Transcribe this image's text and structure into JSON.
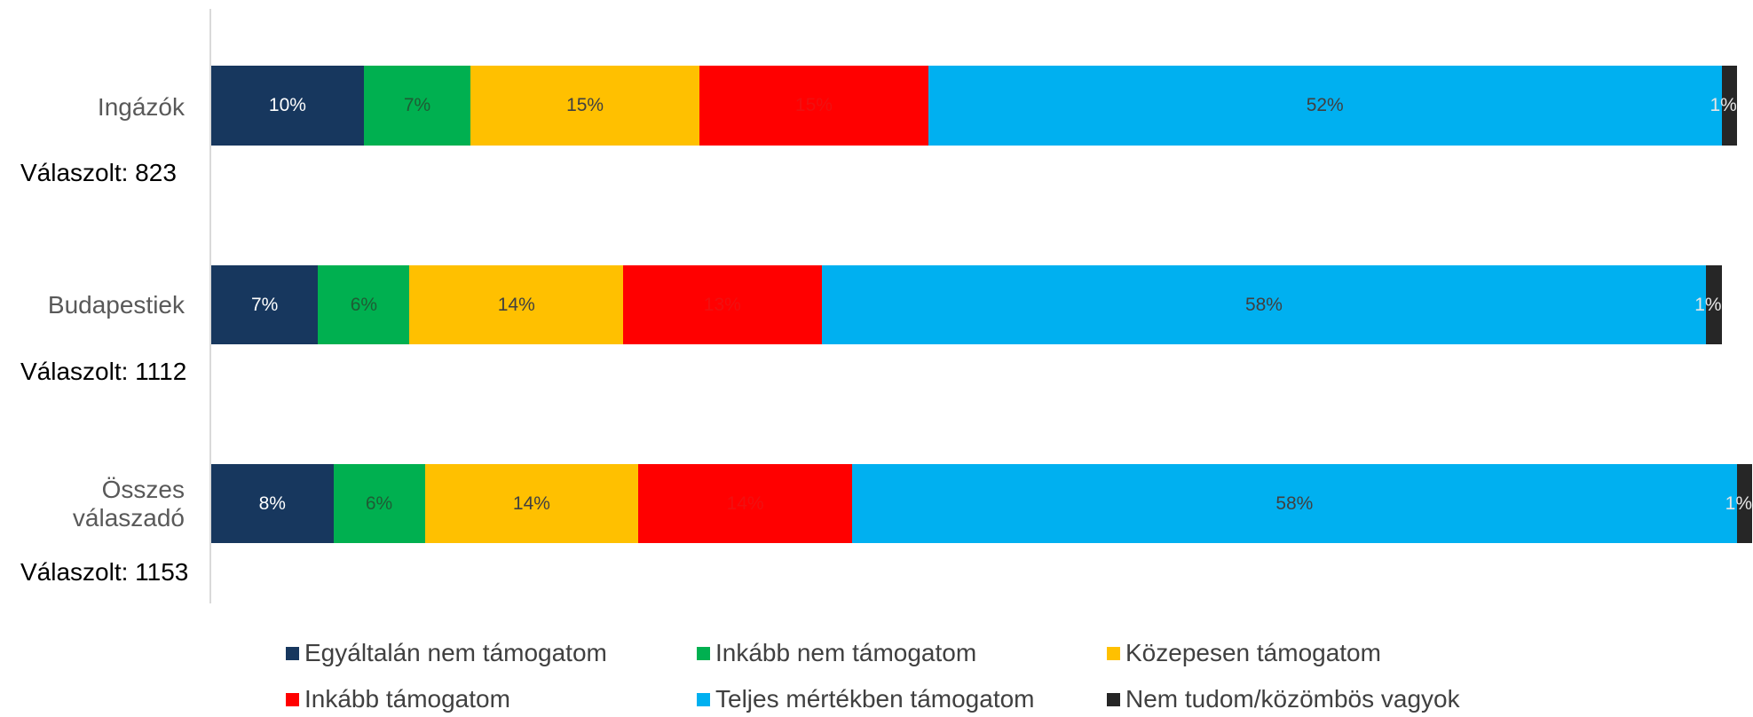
{
  "chart_data": {
    "type": "stacked-bar-horizontal",
    "categories": [
      "Ingázók",
      "Budapestiek",
      "Összes válaszadó"
    ],
    "annotations": [
      "Válaszolt: 823",
      "Válaszolt: 1112",
      "Válaszolt: 1153"
    ],
    "xlim": [
      0,
      101
    ],
    "series": [
      {
        "name": "Egyáltalán nem támogatom",
        "color": "#17375e",
        "label_color": "#ffffff",
        "values": [
          10,
          7,
          8
        ],
        "value_labels": [
          "10%",
          "7%",
          "8%"
        ]
      },
      {
        "name": "Inkább nem támogatom",
        "color": "#00b050",
        "label_color": "#1e5c34",
        "values": [
          7,
          6,
          6
        ],
        "value_labels": [
          "7%",
          "6%",
          "6%"
        ]
      },
      {
        "name": "Közepesen támogatom",
        "color": "#ffc000",
        "label_color": "#404040",
        "values": [
          15,
          14,
          14
        ],
        "value_labels": [
          "15%",
          "14%",
          "14%"
        ]
      },
      {
        "name": "Inkább támogatom",
        "color": "#ff0000",
        "label_color": "#f01010",
        "values": [
          15,
          13,
          14
        ],
        "value_labels": [
          "15%",
          "13%",
          "14%"
        ]
      },
      {
        "name": "Teljes mértékben támogatom",
        "color": "#00b0f0",
        "label_color": "#404040",
        "values": [
          52,
          58,
          58
        ],
        "value_labels": [
          "52%",
          "58%",
          "58%"
        ]
      },
      {
        "name": "Nem tudom/közömbös vagyok",
        "color": "#262626",
        "label_color": "#ffffff",
        "values": [
          1,
          1,
          1
        ],
        "value_labels": [
          "1%",
          "1%",
          "1%"
        ]
      }
    ]
  }
}
